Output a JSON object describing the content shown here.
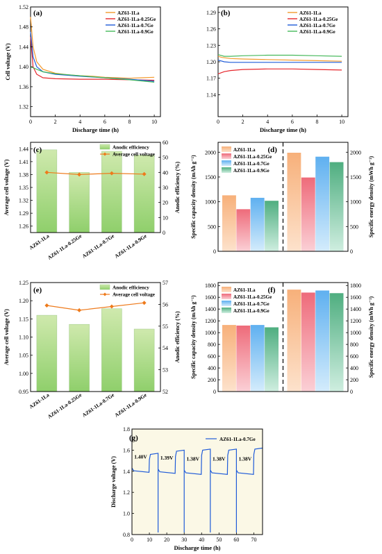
{
  "colors": {
    "orange": "#f39a2d",
    "red": "#e6252b",
    "blue": "#1f5bd8",
    "green": "#45b85a",
    "bar_green_top": "#cfe9ad",
    "bar_green_bottom": "#8fcf6b",
    "line_orange": "#ee7a1b",
    "plot_bg_g": "#fbf8e6"
  },
  "chart_data": [
    {
      "panel": "(a)",
      "type": "line",
      "xlabel": "Discharge time (h)",
      "ylabel": "Cell voltage (V)",
      "xlim": [
        0,
        10.5
      ],
      "ylim": [
        1.3,
        1.52
      ],
      "xticks": [
        "0",
        "2",
        "4",
        "6",
        "8",
        "10"
      ],
      "yticks": [
        "1.32",
        "1.36",
        "1.40",
        "1.44",
        "1.48",
        "1.52"
      ],
      "legend_position": "top-right",
      "series": [
        {
          "name": "AZ61-1La",
          "color": "orange",
          "points": [
            [
              0,
              1.5
            ],
            [
              0.2,
              1.44
            ],
            [
              0.5,
              1.41
            ],
            [
              1,
              1.395
            ],
            [
              2,
              1.387
            ],
            [
              3,
              1.384
            ],
            [
              4,
              1.382
            ],
            [
              5,
              1.381
            ],
            [
              6,
              1.379
            ],
            [
              7,
              1.378
            ],
            [
              8,
              1.377
            ],
            [
              9,
              1.378
            ],
            [
              10,
              1.379
            ]
          ]
        },
        {
          "name": "AZ61-1La-0.25Ge",
          "color": "red",
          "points": [
            [
              0,
              1.46
            ],
            [
              0.2,
              1.4
            ],
            [
              0.5,
              1.385
            ],
            [
              1,
              1.378
            ],
            [
              2,
              1.376
            ],
            [
              4,
              1.375
            ],
            [
              6,
              1.375
            ],
            [
              8,
              1.374
            ],
            [
              10,
              1.373
            ]
          ]
        },
        {
          "name": "AZ61-1La-0.7Ge",
          "color": "blue",
          "points": [
            [
              0,
              1.47
            ],
            [
              0.2,
              1.42
            ],
            [
              0.5,
              1.4
            ],
            [
              1,
              1.39
            ],
            [
              2,
              1.385
            ],
            [
              4,
              1.381
            ],
            [
              6,
              1.378
            ],
            [
              8,
              1.375
            ],
            [
              10,
              1.371
            ]
          ]
        },
        {
          "name": "AZ61-1La-0.9Ge",
          "color": "green",
          "points": [
            [
              0,
              1.4
            ],
            [
              0.2,
              1.398
            ],
            [
              0.5,
              1.395
            ],
            [
              1,
              1.39
            ],
            [
              2,
              1.386
            ],
            [
              4,
              1.382
            ],
            [
              6,
              1.378
            ],
            [
              8,
              1.374
            ],
            [
              10,
              1.369
            ]
          ]
        }
      ]
    },
    {
      "panel": "(b)",
      "type": "line",
      "xlabel": "Discharge time (h)",
      "ylabel": "",
      "xlim": [
        0,
        10.5
      ],
      "ylim": [
        1.1,
        1.3
      ],
      "xticks": [
        "0",
        "2",
        "4",
        "6",
        "8",
        "10"
      ],
      "yticks": [
        "1.14",
        "1.17",
        "1.20",
        "1.23",
        "1.26",
        "1.29"
      ],
      "legend_position": "top-right",
      "series": [
        {
          "name": "AZ61-1La",
          "color": "orange",
          "points": [
            [
              0,
              1.21
            ],
            [
              0.3,
              1.208
            ],
            [
              1,
              1.206
            ],
            [
              2,
              1.205
            ],
            [
              4,
              1.204
            ],
            [
              6,
              1.203
            ],
            [
              8,
              1.202
            ],
            [
              10,
              1.201
            ]
          ]
        },
        {
          "name": "AZ61-1La-0.25Ge",
          "color": "red",
          "points": [
            [
              0,
              1.178
            ],
            [
              0.5,
              1.182
            ],
            [
              1,
              1.184
            ],
            [
              2,
              1.186
            ],
            [
              4,
              1.187
            ],
            [
              6,
              1.187
            ],
            [
              8,
              1.186
            ],
            [
              10,
              1.185
            ]
          ]
        },
        {
          "name": "AZ61-1La-0.7Ge",
          "color": "blue",
          "points": [
            [
              0,
              1.203
            ],
            [
              0.5,
              1.2
            ],
            [
              1,
              1.199
            ],
            [
              2,
              1.199
            ],
            [
              4,
              1.199
            ],
            [
              6,
              1.199
            ],
            [
              8,
              1.199
            ],
            [
              10,
              1.199
            ]
          ]
        },
        {
          "name": "AZ61-1La-0.9Ge",
          "color": "green",
          "points": [
            [
              0,
              1.213
            ],
            [
              0.5,
              1.21
            ],
            [
              1,
              1.21
            ],
            [
              2,
              1.211
            ],
            [
              4,
              1.212
            ],
            [
              6,
              1.212
            ],
            [
              8,
              1.211
            ],
            [
              10,
              1.21
            ]
          ]
        }
      ]
    },
    {
      "panel": "(c)",
      "type": "bar",
      "ylabel": "Average cell voltage (V)",
      "ylabel_right": "Anodic efficiency (%)",
      "categories": [
        "AZ61-1La",
        "AZ61-1La-0.25Ge",
        "AZ61-1La-0.7Ge",
        "AZ61-1La-0.9Ge"
      ],
      "ylim": [
        1.245,
        1.455
      ],
      "yticks": [
        "1.26",
        "1.29",
        "1.32",
        "1.35",
        "1.38",
        "1.41",
        "1.44"
      ],
      "ylim_right": [
        0,
        60
      ],
      "yticks_right": [
        "0",
        "10",
        "20",
        "30",
        "40",
        "50",
        "60"
      ],
      "legend_position": "top-right",
      "series": [
        {
          "name": "Anodic efficiency",
          "axis": "right",
          "values": [
            55.0,
            40.0,
            54.0,
            51.5
          ]
        },
        {
          "name": "Average cell voltage",
          "axis": "left",
          "values": [
            1.385,
            1.38,
            1.383,
            1.381
          ]
        }
      ]
    },
    {
      "panel": "(d)",
      "type": "bar",
      "ylabel": "Specific capacity density (mAh g⁻¹)",
      "ylabel_right": "Specific energy density (mWh g⁻¹)",
      "categories": [
        "AZ61-1La",
        "AZ61-1La-0.25Ge",
        "AZ61-1La-0.7Ge",
        "AZ61-1La-0.9Ge"
      ],
      "ylim": [
        0,
        2200
      ],
      "yticks": [
        "0",
        "500",
        "1000",
        "1500",
        "2000"
      ],
      "ylim_right": [
        0,
        2200
      ],
      "yticks_right": [
        "0",
        "500",
        "1000",
        "1500",
        "2000"
      ],
      "legend_position": "top-left",
      "series": [
        {
          "name": "Specific capacity density",
          "axis": "left",
          "values": [
            1130,
            850,
            1080,
            1020
          ]
        },
        {
          "name": "Specific energy density",
          "axis": "right",
          "values": [
            1990,
            1490,
            1910,
            1800
          ]
        }
      ]
    },
    {
      "panel": "(e)",
      "type": "bar",
      "ylabel": "Average cell voltage (V)",
      "ylabel_right": "Anodic efficiency (%)",
      "categories": [
        "AZ61-1La",
        "AZ61-1La-0.25Ge",
        "AZ61-1La-0.7Ge",
        "AZ61-1La-0.9Ge"
      ],
      "ylim": [
        0.95,
        1.25
      ],
      "yticks": [
        "0.95",
        "1.00",
        "1.05",
        "1.10",
        "1.15",
        "1.20",
        "1.25"
      ],
      "ylim_right": [
        52,
        57
      ],
      "yticks_right": [
        "52",
        "53",
        "54",
        "55",
        "56",
        "57"
      ],
      "legend_position": "top-right",
      "series": [
        {
          "name": "Anodic efficiency",
          "axis": "left",
          "values": [
            1.16,
            1.135,
            1.178,
            1.122
          ]
        },
        {
          "name": "Average cell voltage",
          "axis": "right",
          "values": [
            55.95,
            55.73,
            55.9,
            56.07
          ]
        }
      ]
    },
    {
      "panel": "(f)",
      "type": "bar",
      "ylabel": "Specific capacity density (mAh g⁻¹)",
      "ylabel_right": "Specific energy density (mWh g⁻¹)",
      "categories": [
        "AZ61-1La",
        "AZ61-1La-0.25Ge",
        "AZ61-1La-0.7Ge",
        "AZ61-1La-0.9Ge"
      ],
      "ylim": [
        0,
        1850
      ],
      "yticks": [
        "0",
        "200",
        "400",
        "600",
        "800",
        "1000",
        "1200",
        "1400",
        "1600",
        "1800"
      ],
      "ylim_right": [
        0,
        1850
      ],
      "yticks_right": [
        "0",
        "200",
        "400",
        "600",
        "800",
        "1000",
        "1200",
        "1400",
        "1600",
        "1800"
      ],
      "legend_position": "top-left",
      "series": [
        {
          "name": "Specific capacity density",
          "axis": "left",
          "values": [
            1130,
            1120,
            1130,
            1090
          ]
        },
        {
          "name": "Specific energy density",
          "axis": "right",
          "values": [
            1730,
            1680,
            1715,
            1670
          ]
        }
      ]
    },
    {
      "panel": "(g)",
      "type": "line",
      "xlabel": "Discharge time (h)",
      "ylabel": "Discharge voltage (V)",
      "xlim": [
        0,
        75
      ],
      "ylim": [
        0.8,
        1.8
      ],
      "xticks": [
        "0",
        "10",
        "20",
        "30",
        "40",
        "50",
        "60",
        "70"
      ],
      "yticks": [
        "0.8",
        "1.0",
        "1.2",
        "1.4",
        "1.6",
        "1.8"
      ],
      "legend_position": "top-right",
      "annotations": [
        "1.40V",
        "1.39V",
        "1.38V",
        "1.38V",
        "1.38V"
      ],
      "series": [
        {
          "name": "AZ61-1La-0.7Ge",
          "color": "blue",
          "cycles": [
            {
              "start": 0,
              "discharge_v": 1.4,
              "rest_v": 1.57
            },
            {
              "start": 15,
              "discharge_v": 1.39,
              "rest_v": 1.6
            },
            {
              "start": 30,
              "discharge_v": 1.38,
              "rest_v": 1.61
            },
            {
              "start": 45,
              "discharge_v": 1.38,
              "rest_v": 1.61
            },
            {
              "start": 60,
              "discharge_v": 1.38,
              "rest_v": 1.62
            }
          ]
        }
      ]
    }
  ]
}
